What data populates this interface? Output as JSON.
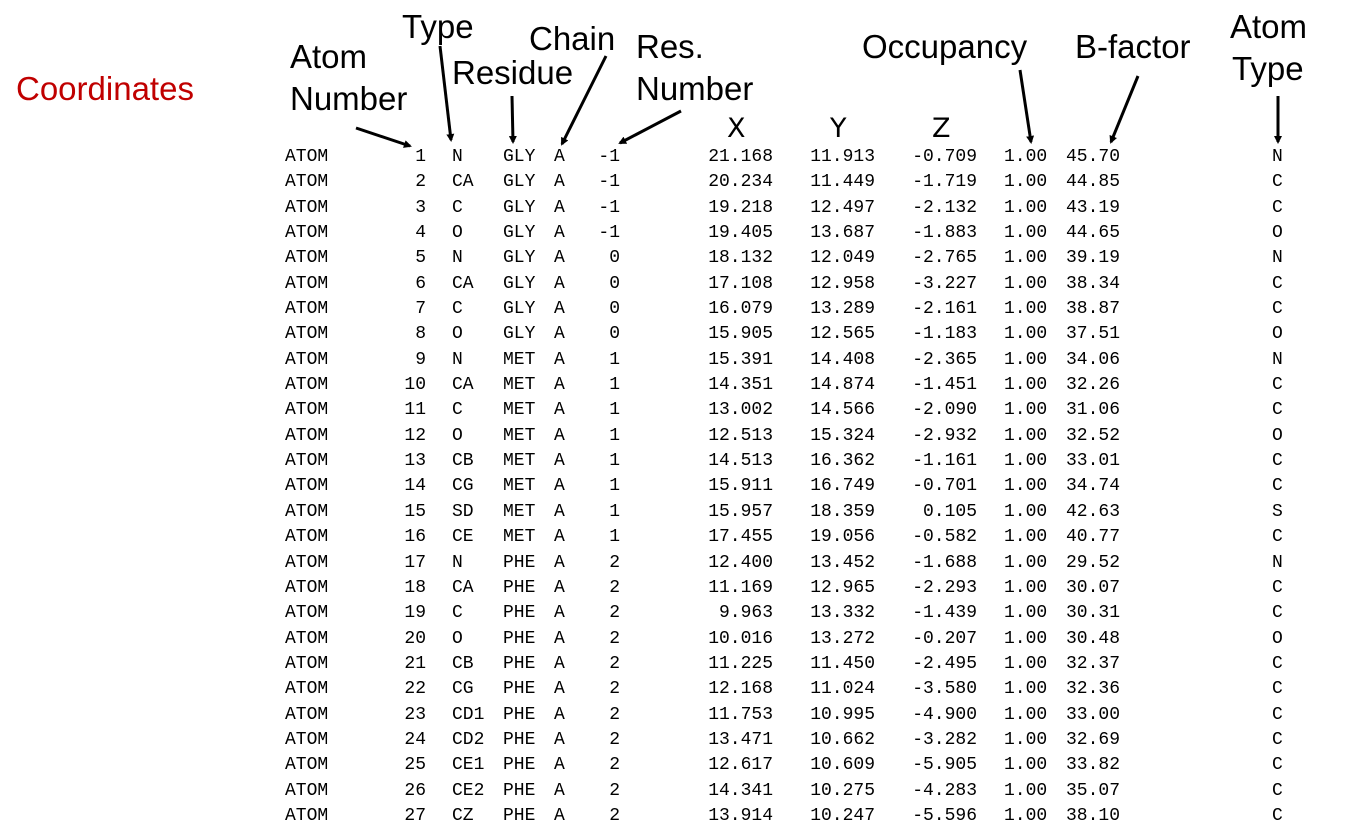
{
  "title": "Coordinates",
  "headers": {
    "type": "Type",
    "atom_number_1": "Atom",
    "atom_number_2": "Number",
    "residue": "Residue",
    "chain": "Chain",
    "res_number_1": "Res.",
    "res_number_2": "Number",
    "occupancy": "Occupancy",
    "bfactor": "B-factor",
    "atom_type_1": "Atom",
    "atom_type_2": "Type",
    "x": "X",
    "y": "Y",
    "z": "Z"
  },
  "rows": [
    {
      "record": "ATOM",
      "serial": "1",
      "name": "N",
      "res": "GLY",
      "chain": "A",
      "resnum": "-1",
      "x": "21.168",
      "y": "11.913",
      "z": "-0.709",
      "occ": "1.00",
      "b": "45.70",
      "el": "N"
    },
    {
      "record": "ATOM",
      "serial": "2",
      "name": "CA",
      "res": "GLY",
      "chain": "A",
      "resnum": "-1",
      "x": "20.234",
      "y": "11.449",
      "z": "-1.719",
      "occ": "1.00",
      "b": "44.85",
      "el": "C"
    },
    {
      "record": "ATOM",
      "serial": "3",
      "name": "C",
      "res": "GLY",
      "chain": "A",
      "resnum": "-1",
      "x": "19.218",
      "y": "12.497",
      "z": "-2.132",
      "occ": "1.00",
      "b": "43.19",
      "el": "C"
    },
    {
      "record": "ATOM",
      "serial": "4",
      "name": "O",
      "res": "GLY",
      "chain": "A",
      "resnum": "-1",
      "x": "19.405",
      "y": "13.687",
      "z": "-1.883",
      "occ": "1.00",
      "b": "44.65",
      "el": "O"
    },
    {
      "record": "ATOM",
      "serial": "5",
      "name": "N",
      "res": "GLY",
      "chain": "A",
      "resnum": "0",
      "x": "18.132",
      "y": "12.049",
      "z": "-2.765",
      "occ": "1.00",
      "b": "39.19",
      "el": "N"
    },
    {
      "record": "ATOM",
      "serial": "6",
      "name": "CA",
      "res": "GLY",
      "chain": "A",
      "resnum": "0",
      "x": "17.108",
      "y": "12.958",
      "z": "-3.227",
      "occ": "1.00",
      "b": "38.34",
      "el": "C"
    },
    {
      "record": "ATOM",
      "serial": "7",
      "name": "C",
      "res": "GLY",
      "chain": "A",
      "resnum": "0",
      "x": "16.079",
      "y": "13.289",
      "z": "-2.161",
      "occ": "1.00",
      "b": "38.87",
      "el": "C"
    },
    {
      "record": "ATOM",
      "serial": "8",
      "name": "O",
      "res": "GLY",
      "chain": "A",
      "resnum": "0",
      "x": "15.905",
      "y": "12.565",
      "z": "-1.183",
      "occ": "1.00",
      "b": "37.51",
      "el": "O"
    },
    {
      "record": "ATOM",
      "serial": "9",
      "name": "N",
      "res": "MET",
      "chain": "A",
      "resnum": "1",
      "x": "15.391",
      "y": "14.408",
      "z": "-2.365",
      "occ": "1.00",
      "b": "34.06",
      "el": "N"
    },
    {
      "record": "ATOM",
      "serial": "10",
      "name": "CA",
      "res": "MET",
      "chain": "A",
      "resnum": "1",
      "x": "14.351",
      "y": "14.874",
      "z": "-1.451",
      "occ": "1.00",
      "b": "32.26",
      "el": "C"
    },
    {
      "record": "ATOM",
      "serial": "11",
      "name": "C",
      "res": "MET",
      "chain": "A",
      "resnum": "1",
      "x": "13.002",
      "y": "14.566",
      "z": "-2.090",
      "occ": "1.00",
      "b": "31.06",
      "el": "C"
    },
    {
      "record": "ATOM",
      "serial": "12",
      "name": "O",
      "res": "MET",
      "chain": "A",
      "resnum": "1",
      "x": "12.513",
      "y": "15.324",
      "z": "-2.932",
      "occ": "1.00",
      "b": "32.52",
      "el": "O"
    },
    {
      "record": "ATOM",
      "serial": "13",
      "name": "CB",
      "res": "MET",
      "chain": "A",
      "resnum": "1",
      "x": "14.513",
      "y": "16.362",
      "z": "-1.161",
      "occ": "1.00",
      "b": "33.01",
      "el": "C"
    },
    {
      "record": "ATOM",
      "serial": "14",
      "name": "CG",
      "res": "MET",
      "chain": "A",
      "resnum": "1",
      "x": "15.911",
      "y": "16.749",
      "z": "-0.701",
      "occ": "1.00",
      "b": "34.74",
      "el": "C"
    },
    {
      "record": "ATOM",
      "serial": "15",
      "name": "SD",
      "res": "MET",
      "chain": "A",
      "resnum": "1",
      "x": "15.957",
      "y": "18.359",
      "z": "0.105",
      "occ": "1.00",
      "b": "42.63",
      "el": "S"
    },
    {
      "record": "ATOM",
      "serial": "16",
      "name": "CE",
      "res": "MET",
      "chain": "A",
      "resnum": "1",
      "x": "17.455",
      "y": "19.056",
      "z": "-0.582",
      "occ": "1.00",
      "b": "40.77",
      "el": "C"
    },
    {
      "record": "ATOM",
      "serial": "17",
      "name": "N",
      "res": "PHE",
      "chain": "A",
      "resnum": "2",
      "x": "12.400",
      "y": "13.452",
      "z": "-1.688",
      "occ": "1.00",
      "b": "29.52",
      "el": "N"
    },
    {
      "record": "ATOM",
      "serial": "18",
      "name": "CA",
      "res": "PHE",
      "chain": "A",
      "resnum": "2",
      "x": "11.169",
      "y": "12.965",
      "z": "-2.293",
      "occ": "1.00",
      "b": "30.07",
      "el": "C"
    },
    {
      "record": "ATOM",
      "serial": "19",
      "name": "C",
      "res": "PHE",
      "chain": "A",
      "resnum": "2",
      "x": "9.963",
      "y": "13.332",
      "z": "-1.439",
      "occ": "1.00",
      "b": "30.31",
      "el": "C"
    },
    {
      "record": "ATOM",
      "serial": "20",
      "name": "O",
      "res": "PHE",
      "chain": "A",
      "resnum": "2",
      "x": "10.016",
      "y": "13.272",
      "z": "-0.207",
      "occ": "1.00",
      "b": "30.48",
      "el": "O"
    },
    {
      "record": "ATOM",
      "serial": "21",
      "name": "CB",
      "res": "PHE",
      "chain": "A",
      "resnum": "2",
      "x": "11.225",
      "y": "11.450",
      "z": "-2.495",
      "occ": "1.00",
      "b": "32.37",
      "el": "C"
    },
    {
      "record": "ATOM",
      "serial": "22",
      "name": "CG",
      "res": "PHE",
      "chain": "A",
      "resnum": "2",
      "x": "12.168",
      "y": "11.024",
      "z": "-3.580",
      "occ": "1.00",
      "b": "32.36",
      "el": "C"
    },
    {
      "record": "ATOM",
      "serial": "23",
      "name": "CD1",
      "res": "PHE",
      "chain": "A",
      "resnum": "2",
      "x": "11.753",
      "y": "10.995",
      "z": "-4.900",
      "occ": "1.00",
      "b": "33.00",
      "el": "C"
    },
    {
      "record": "ATOM",
      "serial": "24",
      "name": "CD2",
      "res": "PHE",
      "chain": "A",
      "resnum": "2",
      "x": "13.471",
      "y": "10.662",
      "z": "-3.282",
      "occ": "1.00",
      "b": "32.69",
      "el": "C"
    },
    {
      "record": "ATOM",
      "serial": "25",
      "name": "CE1",
      "res": "PHE",
      "chain": "A",
      "resnum": "2",
      "x": "12.617",
      "y": "10.609",
      "z": "-5.905",
      "occ": "1.00",
      "b": "33.82",
      "el": "C"
    },
    {
      "record": "ATOM",
      "serial": "26",
      "name": "CE2",
      "res": "PHE",
      "chain": "A",
      "resnum": "2",
      "x": "14.341",
      "y": "10.275",
      "z": "-4.283",
      "occ": "1.00",
      "b": "35.07",
      "el": "C"
    },
    {
      "record": "ATOM",
      "serial": "27",
      "name": "CZ",
      "res": "PHE",
      "chain": "A",
      "resnum": "2",
      "x": "13.914",
      "y": "10.247",
      "z": "-5.596",
      "occ": "1.00",
      "b": "38.10",
      "el": "C"
    }
  ]
}
